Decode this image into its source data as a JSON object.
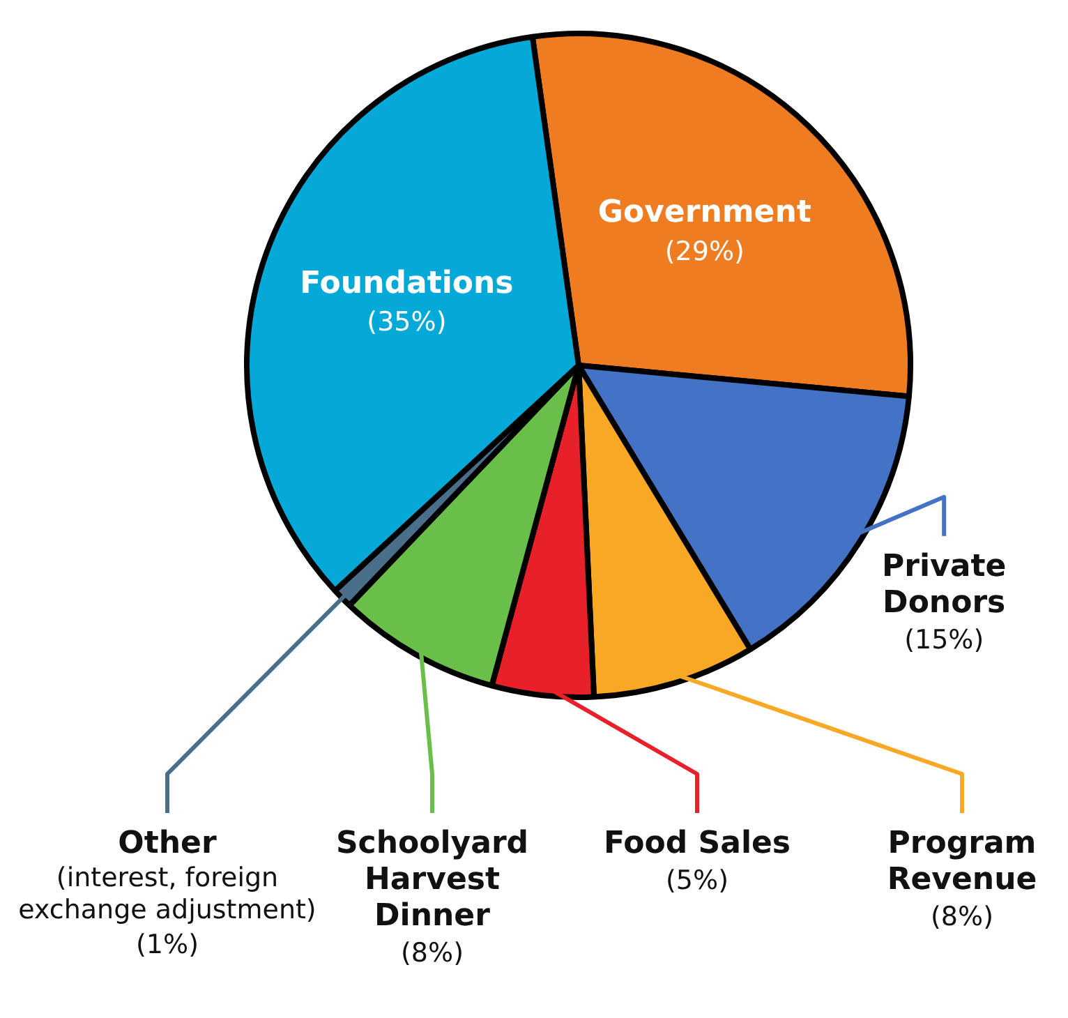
{
  "chart_data": {
    "type": "pie",
    "categories": [
      "Government",
      "Private Donors",
      "Program Revenue",
      "Food Sales",
      "Schoolyard Harvest Dinner",
      "Other (interest, foreign exchange adjustment)",
      "Foundations"
    ],
    "values": [
      29,
      15,
      8,
      5,
      8,
      1,
      35
    ],
    "colors": [
      "#f07c22",
      "#4472c4",
      "#f9a825",
      "#e8202a",
      "#6abf4b",
      "#4a6f8a",
      "#05a9d8"
    ],
    "value_labels": [
      "(29%)",
      "(15%)",
      "(8%)",
      "(5%)",
      "(8%)",
      "(1%)",
      "(35%)"
    ],
    "legend": false
  }
}
